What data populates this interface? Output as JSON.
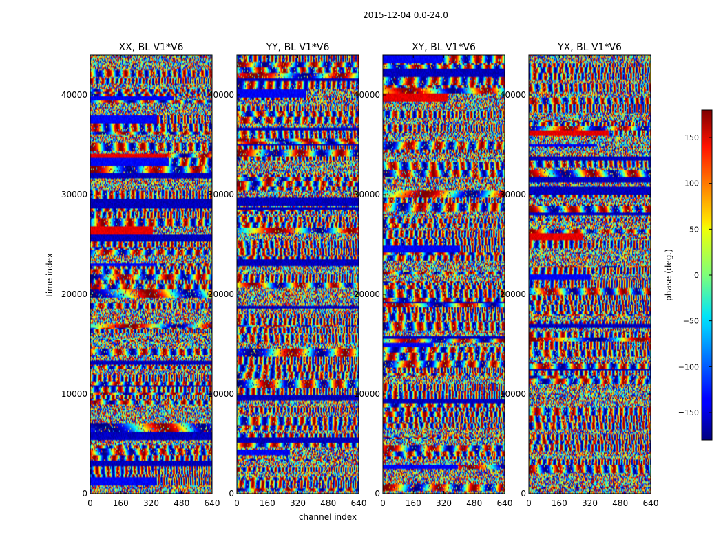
{
  "chart_data": {
    "type": "heatmap",
    "title": "2015-12-04 0.0-24.0",
    "panels": [
      {
        "title": "XX, BL V1*V6"
      },
      {
        "title": "YY, BL V1*V6"
      },
      {
        "title": "XY, BL V1*V6"
      },
      {
        "title": "YX, BL V1*V6"
      }
    ],
    "xlabel": "channel index",
    "ylabel": "time index",
    "xlim": [
      0,
      640
    ],
    "ylim": [
      0,
      44000
    ],
    "xticks": [
      0,
      160,
      320,
      480,
      640
    ],
    "yticks": [
      0,
      10000,
      20000,
      30000,
      40000
    ],
    "colorbar": {
      "label": "phase (deg.)",
      "range": [
        -180,
        180
      ],
      "ticks": [
        -150,
        -100,
        -50,
        0,
        50,
        100,
        150
      ],
      "colormap": "jet"
    }
  }
}
